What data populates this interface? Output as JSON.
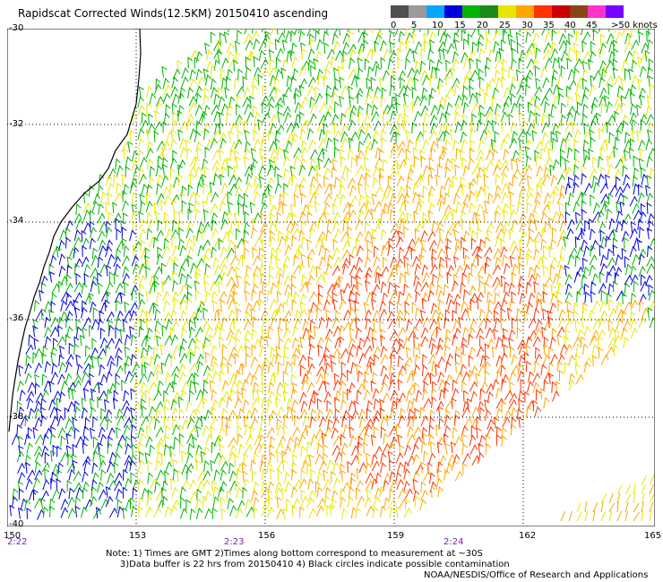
{
  "title": "Rapidscat Corrected Winds(12.5KM) 20150410 ascending",
  "legend": {
    "colors": [
      "#505050",
      "#9a9a9a",
      "#00a8ff",
      "#0000dd",
      "#00b400",
      "#1a8a1a",
      "#e6e600",
      "#ffa500",
      "#ff3300",
      "#cc0000",
      "#8b4513",
      "#ff33cc",
      "#7a00ff"
    ],
    "labels": [
      "0",
      "5",
      "10",
      "15",
      "20",
      "25",
      "30",
      "35",
      "40",
      "45",
      ">50 knots"
    ]
  },
  "latitudes": [
    "-30",
    "-32",
    "-34",
    "-36",
    "-38",
    "-40"
  ],
  "longitudes": [
    "150",
    "153",
    "156",
    "159",
    "162",
    "165"
  ],
  "times": [
    "2:22",
    "2:23",
    "2:24"
  ],
  "notes": "Note: 1) Times are GMT 2)Times along bottom correspond to measurement at ~30S\n     3)Data buffer is 22 hrs from 20150410 4) Black circles indicate possible contamination",
  "credit": "NOAA/NESDIS/Office of Research and Applications"
}
